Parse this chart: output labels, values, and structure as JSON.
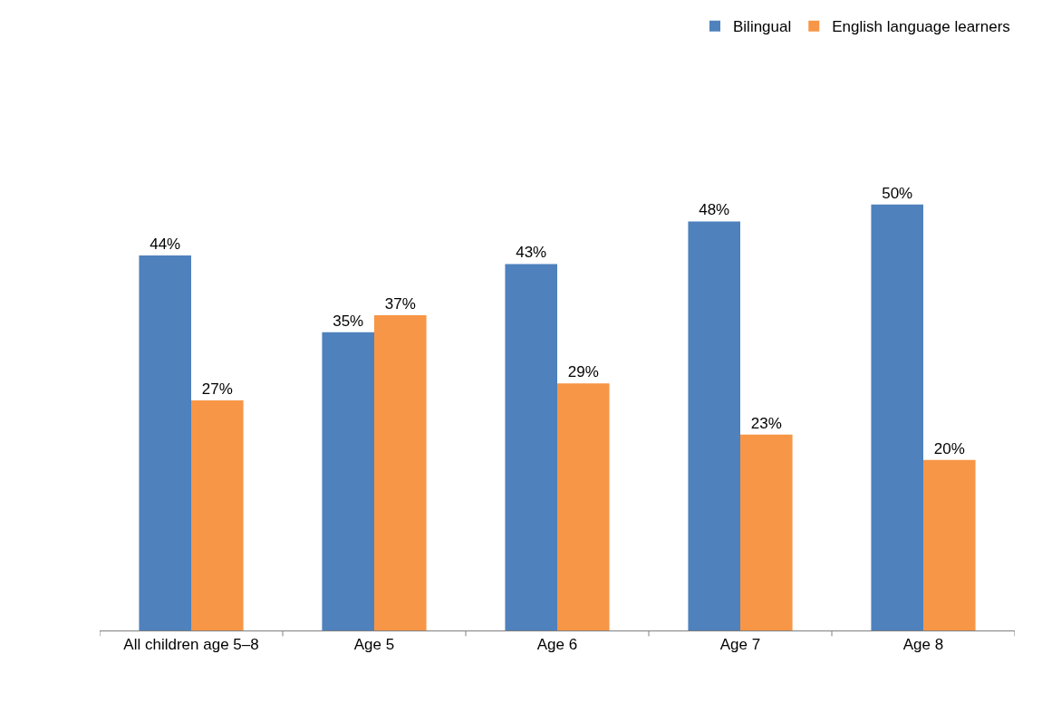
{
  "chart_data": {
    "type": "bar",
    "categories": [
      "All children age 5–8",
      "Age 5",
      "Age 6",
      "Age 7",
      "Age 8"
    ],
    "series": [
      {
        "name": "Bilingual",
        "color": "#4f81bd",
        "values": [
          44,
          35,
          43,
          48,
          50
        ],
        "value_labels": [
          "44%",
          "35%",
          "43%",
          "48%",
          "50%"
        ]
      },
      {
        "name": "English language learners",
        "color": "#f79646",
        "values": [
          27,
          37,
          29,
          23,
          20
        ],
        "value_labels": [
          "27%",
          "37%",
          "29%",
          "23%",
          "20%"
        ]
      }
    ],
    "legend": "top right"
  }
}
